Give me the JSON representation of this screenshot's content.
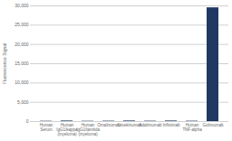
{
  "chart_data": {
    "type": "bar",
    "categories": [
      "Human\nSerum",
      "Human\nIgG1/kappa\n(myeloma)",
      "Human\nIgG1/lambda\n(myeloma)",
      "Omalizumab",
      "Ustekinumab",
      "Adalimumab",
      "Infliximab",
      "Human\nTNF-alpha",
      "Golimumab"
    ],
    "values": [
      80,
      150,
      80,
      100,
      150,
      100,
      150,
      100,
      29500
    ],
    "color": "#1f3864",
    "ylabel": "Fluorescence Signal",
    "ylim": [
      0,
      30000
    ],
    "yticks": [
      0,
      {
        "value": 5000,
        "label": "5,000"
      },
      {
        "value": 10000,
        "label": "10,000"
      },
      {
        "value": 15000,
        "label": "15,000"
      },
      {
        "value": 20000,
        "label": "20,000"
      },
      {
        "value": 25000,
        "label": "25,000"
      },
      {
        "value": 30000,
        "label": "30,000"
      }
    ],
    "grid": true
  }
}
